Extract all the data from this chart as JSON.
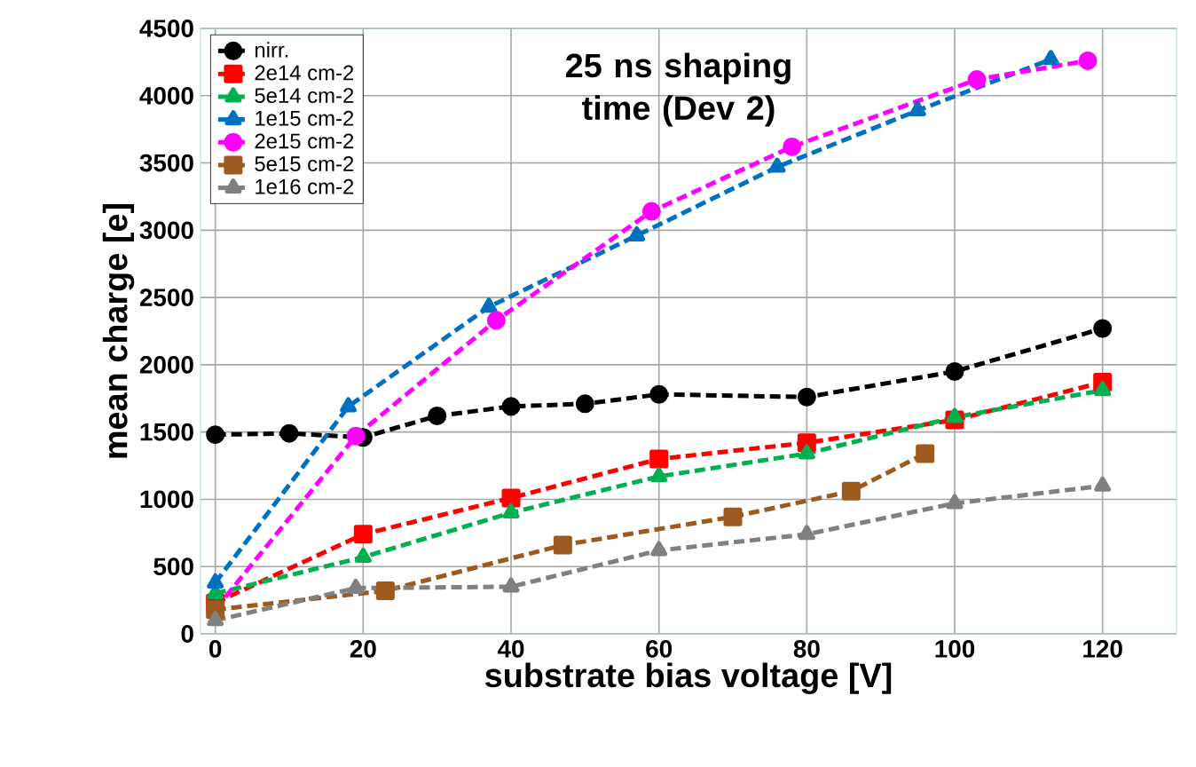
{
  "chart_data": {
    "type": "line",
    "title": "25 ns shaping time (Dev 2)",
    "xlabel": "substrate bias voltage [V]",
    "ylabel": "mean charge [e]",
    "xlim": [
      -2,
      130
    ],
    "xticks": [
      0,
      20,
      40,
      60,
      80,
      100,
      120
    ],
    "ylim": [
      0,
      4500
    ],
    "yticks": [
      0,
      500,
      1000,
      1500,
      2000,
      2500,
      3000,
      3500,
      4000,
      4500
    ],
    "grid": true,
    "legend": "top left",
    "line_style": "dashed",
    "series": [
      {
        "name": "nirr.",
        "color": "#000000",
        "marker": "circle",
        "x": [
          0,
          10,
          20,
          30,
          40,
          50,
          60,
          80,
          100,
          120
        ],
        "values": [
          1480,
          1490,
          1460,
          1620,
          1690,
          1710,
          1780,
          1760,
          1950,
          2270
        ]
      },
      {
        "name": "2e14 cm-2",
        "color": "#ff0000",
        "marker": "square",
        "x": [
          0,
          20,
          40,
          60,
          80,
          100,
          120
        ],
        "values": [
          230,
          740,
          1010,
          1300,
          1420,
          1590,
          1870
        ]
      },
      {
        "name": "5e14 cm-2",
        "color": "#00b050",
        "marker": "triangle",
        "x": [
          0,
          20,
          40,
          60,
          80,
          100,
          120
        ],
        "values": [
          300,
          570,
          900,
          1170,
          1340,
          1610,
          1810
        ]
      },
      {
        "name": "1e15 cm-2",
        "color": "#0070c0",
        "marker": "triangle",
        "x": [
          0,
          18,
          37,
          57,
          76,
          95,
          113
        ],
        "values": [
          380,
          1690,
          2430,
          2960,
          3470,
          3890,
          4270
        ]
      },
      {
        "name": "2e15 cm-2",
        "color": "#ff00ff",
        "marker": "circle",
        "x": [
          0,
          19,
          38,
          59,
          78,
          103,
          118
        ],
        "values": [
          180,
          1470,
          2330,
          3140,
          3620,
          4120,
          4260
        ]
      },
      {
        "name": "5e15 cm-2",
        "color": "#9c5a1e",
        "marker": "square",
        "x": [
          0,
          23,
          47,
          70,
          86,
          96
        ],
        "values": [
          180,
          320,
          660,
          870,
          1060,
          1340
        ]
      },
      {
        "name": "1e16 cm-2",
        "color": "#808080",
        "marker": "triangle",
        "x": [
          0,
          19,
          40,
          60,
          80,
          100,
          120
        ],
        "values": [
          100,
          340,
          350,
          620,
          740,
          970,
          1100
        ]
      }
    ]
  }
}
